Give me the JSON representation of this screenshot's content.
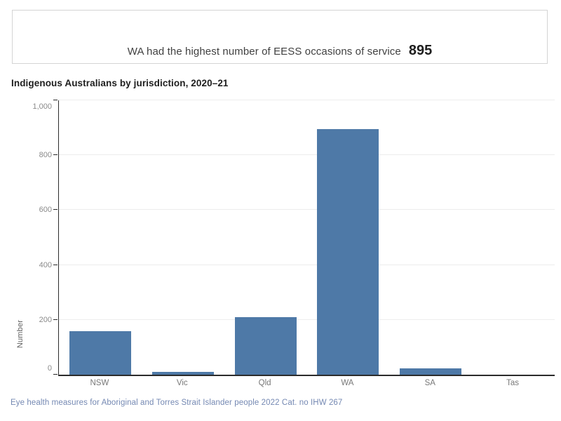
{
  "banner": {
    "text": "WA had the highest number of EESS occasions of service",
    "value": "895"
  },
  "chart": {
    "title": "Indigenous Australians by jurisdiction, 2020–21",
    "y_axis_title": "Number"
  },
  "chart_data": {
    "type": "bar",
    "title": "Indigenous Australians by jurisdiction, 2020–21",
    "categories": [
      "NSW",
      "Vic",
      "Qld",
      "WA",
      "SA",
      "Tas"
    ],
    "values": [
      158,
      10,
      210,
      895,
      23,
      0
    ],
    "xlabel": "",
    "ylabel": "Number",
    "ylim": [
      0,
      1000
    ],
    "yticks": [
      0,
      200,
      400,
      600,
      800,
      1000
    ],
    "ytick_labels": [
      "0",
      "200",
      "400",
      "600",
      "800",
      "1,000"
    ],
    "grid": true,
    "legend": false,
    "bar_color": "#4e79a7",
    "highlight": {
      "category": "WA",
      "value": 895
    }
  },
  "footer": {
    "source": "Eye health measures for Aboriginal and Torres Strait Islander people 2022 Cat. no IHW 267"
  },
  "colors": {
    "bar": "#4e79a7",
    "axis": "#2b2b2b",
    "gridline": "#ededed",
    "tick_label": "#8a8a8a",
    "category_label": "#787878",
    "axis_title": "#5f5f5f",
    "banner_border": "#d4d4d4",
    "banner_text": "#414141",
    "title_text": "#1e1e1e",
    "caption_text": "#7589b3"
  }
}
